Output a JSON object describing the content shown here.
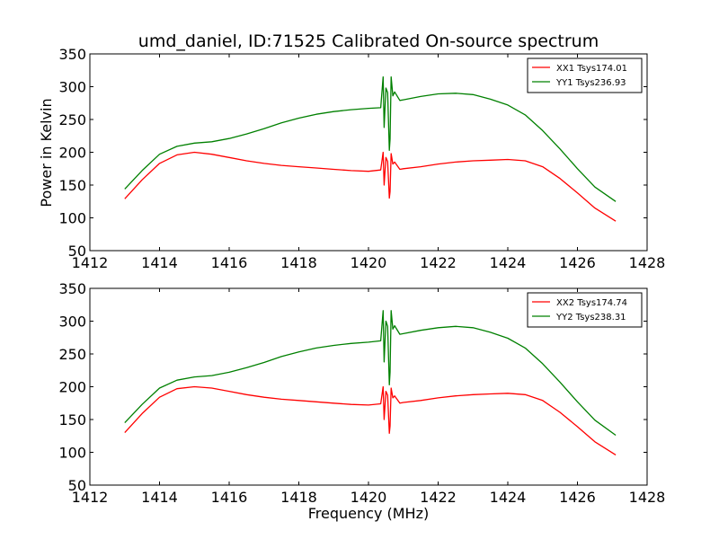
{
  "title": "umd_daniel, ID:71525 Calibrated On-source spectrum",
  "ylabel": "Power in Kelvin",
  "xlabel": "Frequency (MHz)",
  "colors": {
    "xx": "#ff0000",
    "yy": "#008000"
  },
  "chart_data": [
    {
      "type": "line",
      "xlim": [
        1412,
        1428
      ],
      "ylim": [
        50,
        350
      ],
      "x_ticks": [
        1412,
        1414,
        1416,
        1418,
        1420,
        1422,
        1424,
        1426,
        1428
      ],
      "y_ticks": [
        50,
        100,
        150,
        200,
        250,
        300,
        350
      ],
      "legend_position": "top-right",
      "series": [
        {
          "name": "XX1 Tsys174.01",
          "color": "#ff0000",
          "x": [
            1413.0,
            1413.5,
            1414.0,
            1414.5,
            1415.0,
            1415.5,
            1416.0,
            1416.5,
            1417.0,
            1417.5,
            1418.0,
            1418.5,
            1419.0,
            1419.5,
            1420.0,
            1420.35,
            1420.42,
            1420.45,
            1420.5,
            1420.55,
            1420.6,
            1420.62,
            1420.65,
            1420.7,
            1420.75,
            1420.9,
            1421.0,
            1421.5,
            1422.0,
            1422.5,
            1423.0,
            1423.5,
            1424.0,
            1424.5,
            1425.0,
            1425.5,
            1426.0,
            1426.5,
            1427.1
          ],
          "y": [
            129,
            158,
            183,
            196,
            200,
            197,
            192,
            187,
            183,
            180,
            178,
            176,
            174,
            172,
            171,
            173,
            200,
            150,
            192,
            186,
            130,
            140,
            198,
            182,
            185,
            174,
            175,
            178,
            182,
            185,
            187,
            188,
            189,
            187,
            178,
            160,
            138,
            115,
            95
          ]
        },
        {
          "name": "YY1 Tsys236.93",
          "color": "#008000",
          "x": [
            1413.0,
            1413.5,
            1414.0,
            1414.5,
            1415.0,
            1415.5,
            1416.0,
            1416.5,
            1417.0,
            1417.5,
            1418.0,
            1418.5,
            1419.0,
            1419.5,
            1420.0,
            1420.35,
            1420.42,
            1420.45,
            1420.5,
            1420.55,
            1420.6,
            1420.62,
            1420.65,
            1420.7,
            1420.75,
            1420.9,
            1421.0,
            1421.5,
            1422.0,
            1422.5,
            1423.0,
            1423.5,
            1424.0,
            1424.5,
            1425.0,
            1425.5,
            1426.0,
            1426.5,
            1427.1
          ],
          "y": [
            144,
            172,
            197,
            209,
            214,
            216,
            221,
            228,
            236,
            245,
            252,
            258,
            262,
            265,
            267,
            268,
            315,
            238,
            298,
            291,
            203,
            220,
            315,
            286,
            292,
            279,
            280,
            285,
            289,
            290,
            288,
            281,
            272,
            257,
            233,
            205,
            175,
            147,
            125
          ]
        }
      ]
    },
    {
      "type": "line",
      "xlim": [
        1412,
        1428
      ],
      "ylim": [
        50,
        350
      ],
      "x_ticks": [
        1412,
        1414,
        1416,
        1418,
        1420,
        1422,
        1424,
        1426,
        1428
      ],
      "y_ticks": [
        50,
        100,
        150,
        200,
        250,
        300,
        350
      ],
      "legend_position": "top-right",
      "series": [
        {
          "name": "XX2 Tsys174.74",
          "color": "#ff0000",
          "x": [
            1413.0,
            1413.5,
            1414.0,
            1414.5,
            1415.0,
            1415.5,
            1416.0,
            1416.5,
            1417.0,
            1417.5,
            1418.0,
            1418.5,
            1419.0,
            1419.5,
            1420.0,
            1420.35,
            1420.42,
            1420.45,
            1420.5,
            1420.55,
            1420.6,
            1420.62,
            1420.65,
            1420.7,
            1420.75,
            1420.9,
            1421.0,
            1421.5,
            1422.0,
            1422.5,
            1423.0,
            1423.5,
            1424.0,
            1424.5,
            1425.0,
            1425.5,
            1426.0,
            1426.5,
            1427.1
          ],
          "y": [
            130,
            159,
            184,
            197,
            200,
            198,
            193,
            188,
            184,
            181,
            179,
            177,
            175,
            173,
            172,
            174,
            200,
            150,
            193,
            187,
            129,
            140,
            198,
            183,
            186,
            175,
            176,
            179,
            183,
            186,
            188,
            189,
            190,
            188,
            179,
            161,
            139,
            116,
            96
          ]
        },
        {
          "name": "YY2 Tsys238.31",
          "color": "#008000",
          "x": [
            1413.0,
            1413.5,
            1414.0,
            1414.5,
            1415.0,
            1415.5,
            1416.0,
            1416.5,
            1417.0,
            1417.5,
            1418.0,
            1418.5,
            1419.0,
            1419.5,
            1420.0,
            1420.35,
            1420.42,
            1420.45,
            1420.5,
            1420.55,
            1420.6,
            1420.62,
            1420.65,
            1420.7,
            1420.75,
            1420.9,
            1421.0,
            1421.5,
            1422.0,
            1422.5,
            1423.0,
            1423.5,
            1424.0,
            1424.5,
            1425.0,
            1425.5,
            1426.0,
            1426.5,
            1427.1
          ],
          "y": [
            145,
            173,
            198,
            210,
            215,
            217,
            222,
            229,
            237,
            246,
            253,
            259,
            263,
            266,
            268,
            270,
            316,
            238,
            300,
            292,
            203,
            222,
            316,
            288,
            293,
            280,
            281,
            286,
            290,
            292,
            290,
            283,
            274,
            259,
            235,
            207,
            177,
            149,
            126
          ]
        }
      ]
    }
  ]
}
